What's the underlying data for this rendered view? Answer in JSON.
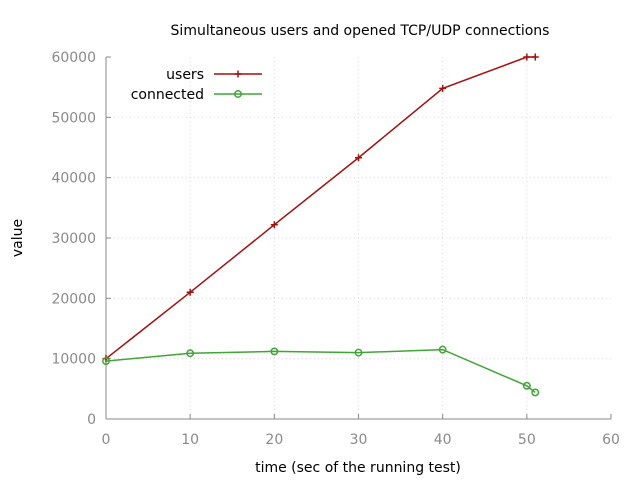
{
  "chart_data": {
    "type": "line",
    "title": "Simultaneous users and opened TCP/UDP connections",
    "xlabel": "time (sec of the running test)",
    "ylabel": "value",
    "xlim": [
      0,
      60
    ],
    "ylim": [
      0,
      60000
    ],
    "xticks": [
      0,
      10,
      20,
      30,
      40,
      50,
      60
    ],
    "yticks": [
      0,
      10000,
      20000,
      30000,
      40000,
      50000,
      60000
    ],
    "grid": true,
    "legend_position": "top-left",
    "series": [
      {
        "name": "users",
        "color": "#a50f0f",
        "marker": "plus",
        "x": [
          0,
          10,
          20,
          30,
          40,
          50,
          51
        ],
        "y": [
          10000,
          21000,
          32200,
          43300,
          54800,
          60000,
          60000
        ]
      },
      {
        "name": "connected",
        "color": "#3fa535",
        "marker": "circle",
        "x": [
          0,
          10,
          20,
          30,
          40,
          50,
          51
        ],
        "y": [
          9600,
          10900,
          11200,
          11000,
          11500,
          5500,
          4400
        ]
      }
    ]
  }
}
